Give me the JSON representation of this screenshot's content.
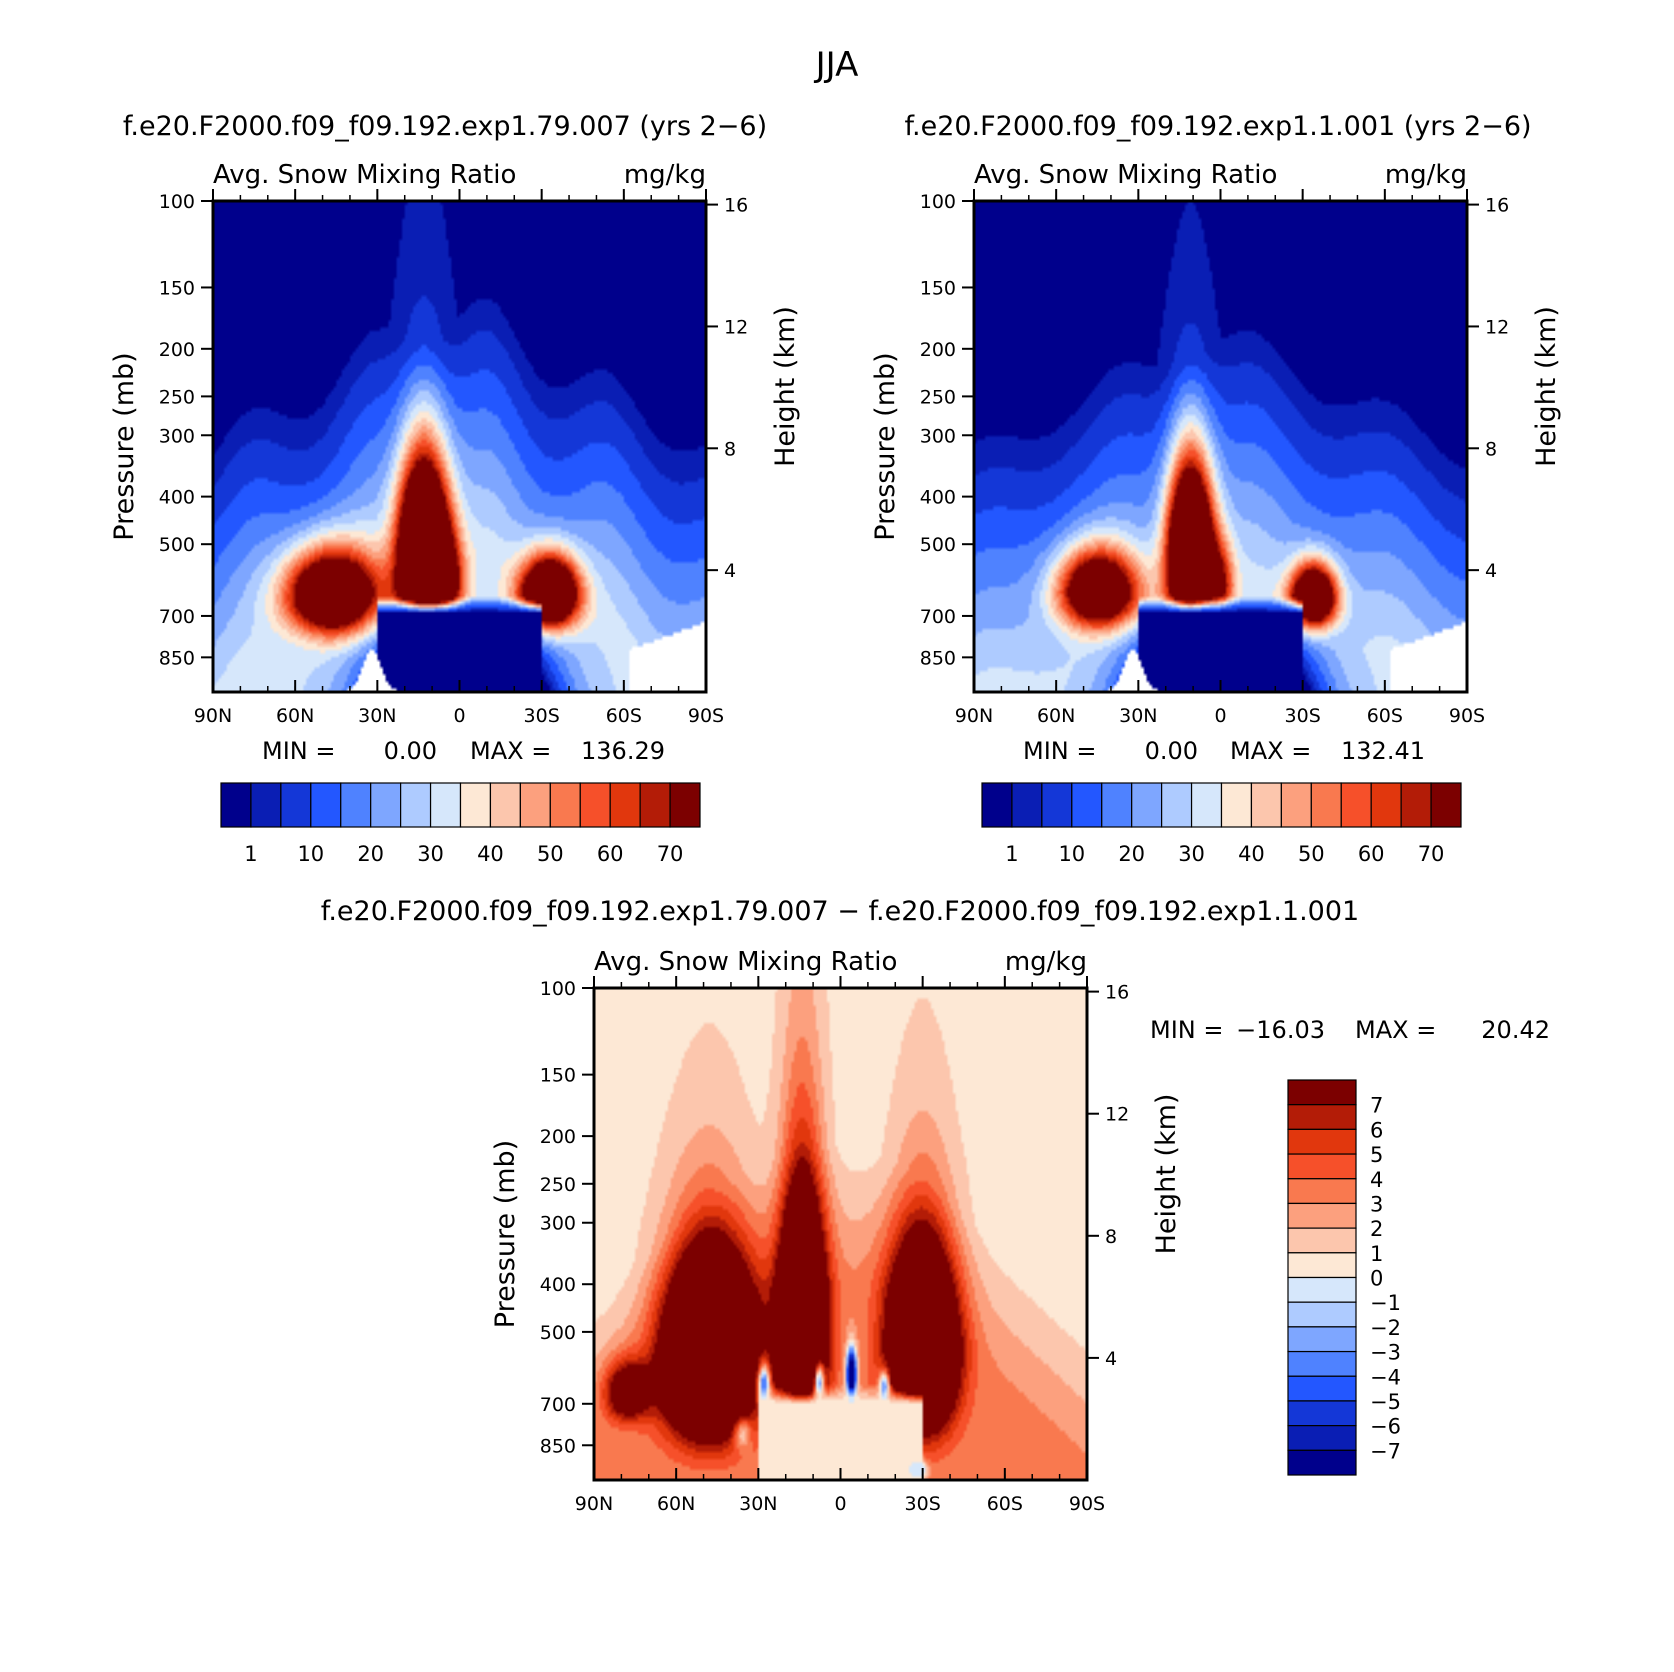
{
  "figure": {
    "title": "JJA",
    "diff_title": "f.e20.F2000.f09_f09.192.exp1.79.007 − f.e20.F2000.f09_f09.192.exp1.1.001"
  },
  "colors": {
    "abs_levels": [
      "#00008c",
      "#0a1eb4",
      "#1437d7",
      "#2357ff",
      "#4f82ff",
      "#7ea6ff",
      "#aecbff",
      "#d6e7fb",
      "#fde8d5",
      "#fcc6ad",
      "#fca07e",
      "#f9794f",
      "#f6502a",
      "#e1370d",
      "#b31c07",
      "#7c0000"
    ],
    "diff_levels": [
      "#00008c",
      "#0a1eb4",
      "#1437d7",
      "#2357ff",
      "#4f82ff",
      "#7ea6ff",
      "#aecbff",
      "#d6e7fb",
      "#fde8d5",
      "#fcc6ad",
      "#fca07e",
      "#f9794f",
      "#f6502a",
      "#e1370d",
      "#b31c07",
      "#7c0000"
    ]
  },
  "chart_data": [
    {
      "type": "heatmap",
      "id": "panel1",
      "title": "f.e20.F2000.f09_f09.192.exp1.79.007 (yrs 2−6)",
      "field": "Avg. Snow Mixing Ratio",
      "units": "mg/kg",
      "xlabel": "",
      "ylabel": "Pressure (mb)",
      "y2label": "Height (km)",
      "x_ticks": [
        "90N",
        "60N",
        "30N",
        "0",
        "30S",
        "60S",
        "90S"
      ],
      "x_range": [
        90,
        -90
      ],
      "y_ticks": [
        100,
        150,
        200,
        250,
        300,
        400,
        500,
        700,
        850
      ],
      "y_range": [
        100,
        1000
      ],
      "y2_ticks": [
        16,
        12,
        8,
        4
      ],
      "min_label": "MIN =",
      "min_value": "0.00",
      "max_label": "MAX =",
      "max_value": "136.29",
      "colorbar_labels": [
        "1",
        "10",
        "20",
        "30",
        "40",
        "50",
        "60",
        "70"
      ],
      "blobs": [
        {
          "lat": 47,
          "p": 630,
          "w": 16,
          "h": 120,
          "amp": 95
        },
        {
          "lat": 13,
          "p": 520,
          "w": 9,
          "h": 200,
          "amp": 136
        },
        {
          "lat": -33,
          "p": 630,
          "w": 10,
          "h": 100,
          "amp": 110
        },
        {
          "lat": 5,
          "p": 600,
          "w": 6,
          "h": 120,
          "amp": 40
        }
      ]
    },
    {
      "type": "heatmap",
      "id": "panel2",
      "title": "f.e20.F2000.f09_f09.192.exp1.1.001 (yrs 2−6)",
      "field": "Avg. Snow Mixing Ratio",
      "units": "mg/kg",
      "xlabel": "",
      "ylabel": "Pressure (mb)",
      "y2label": "Height (km)",
      "x_ticks": [
        "90N",
        "60N",
        "30N",
        "0",
        "30S",
        "60S",
        "90S"
      ],
      "x_range": [
        90,
        -90
      ],
      "y_ticks": [
        100,
        150,
        200,
        250,
        300,
        400,
        500,
        700,
        850
      ],
      "y_range": [
        100,
        1000
      ],
      "y2_ticks": [
        16,
        12,
        8,
        4
      ],
      "min_label": "MIN =",
      "min_value": "0.00",
      "max_label": "MAX =",
      "max_value": "132.41",
      "colorbar_labels": [
        "1",
        "10",
        "20",
        "30",
        "40",
        "50",
        "60",
        "70"
      ],
      "blobs": [
        {
          "lat": 45,
          "p": 620,
          "w": 14,
          "h": 110,
          "amp": 85
        },
        {
          "lat": 11,
          "p": 520,
          "w": 8,
          "h": 190,
          "amp": 132
        },
        {
          "lat": -34,
          "p": 640,
          "w": 8,
          "h": 90,
          "amp": 100
        },
        {
          "lat": 0,
          "p": 600,
          "w": 5,
          "h": 110,
          "amp": 35
        }
      ]
    },
    {
      "type": "heatmap",
      "id": "panel3",
      "title": "",
      "field": "Avg. Snow Mixing Ratio",
      "units": "mg/kg",
      "xlabel": "",
      "ylabel": "Pressure (mb)",
      "y2label": "Height (km)",
      "x_ticks": [
        "90N",
        "60N",
        "30N",
        "0",
        "30S",
        "60S",
        "90S"
      ],
      "x_range": [
        90,
        -90
      ],
      "y_ticks": [
        100,
        150,
        200,
        250,
        300,
        400,
        500,
        700,
        850
      ],
      "y_range": [
        100,
        1000
      ],
      "y2_ticks": [
        16,
        12,
        8,
        4
      ],
      "min_label": "MIN =",
      "min_value": "−16.03",
      "max_label": "MAX =",
      "max_value": "20.42",
      "colorbar_labels": [
        "7",
        "6",
        "5",
        "4",
        "3",
        "2",
        "1",
        "0",
        "−1",
        "−2",
        "−3",
        "−4",
        "−5",
        "−6",
        "−7"
      ],
      "blobs": [
        {
          "lat": 48,
          "p": 560,
          "w": 16,
          "h": 230,
          "amp": 20
        },
        {
          "lat": 14,
          "p": 500,
          "w": 8,
          "h": 260,
          "amp": 20
        },
        {
          "lat": -30,
          "p": 540,
          "w": 12,
          "h": 230,
          "amp": 18
        },
        {
          "lat": 78,
          "p": 660,
          "w": 8,
          "h": 90,
          "amp": 8
        }
      ],
      "neg_blobs": [
        {
          "lat": 28,
          "p": 640,
          "w": 2.2,
          "h": 60,
          "amp": -12
        },
        {
          "lat": 8,
          "p": 630,
          "w": 2.0,
          "h": 60,
          "amp": -14
        },
        {
          "lat": -4,
          "p": 610,
          "w": 1.8,
          "h": 70,
          "amp": -16
        },
        {
          "lat": -16,
          "p": 650,
          "w": 2.0,
          "h": 50,
          "amp": -10
        },
        {
          "lat": 36,
          "p": 800,
          "w": 3,
          "h": 60,
          "amp": -5
        },
        {
          "lat": -28,
          "p": 950,
          "w": 3,
          "h": 40,
          "amp": -9
        }
      ]
    }
  ]
}
